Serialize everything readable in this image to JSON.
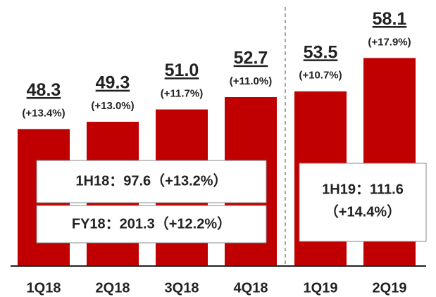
{
  "chart_data": {
    "type": "bar",
    "categories": [
      "1Q18",
      "2Q18",
      "3Q18",
      "4Q18",
      "1Q19",
      "2Q19"
    ],
    "values": [
      48.3,
      49.3,
      51.0,
      52.7,
      53.5,
      58.1
    ],
    "value_labels": [
      "48.3",
      "49.3",
      "51.0",
      "52.7",
      "53.5",
      "58.1"
    ],
    "growth_labels": [
      "(+13.4%)",
      "(+13.0%)",
      "(+11.7%)",
      "(+11.0%)",
      "(+10.7%)",
      "(+17.9%)"
    ],
    "color": "#c00000",
    "ylim": [
      29.4,
      66.1
    ],
    "annotations": [
      "1H18：97.6（+13.2%）",
      "FY18：201.3（+12.2%）",
      "1H19：111.6",
      "（+14.4%）"
    ]
  }
}
